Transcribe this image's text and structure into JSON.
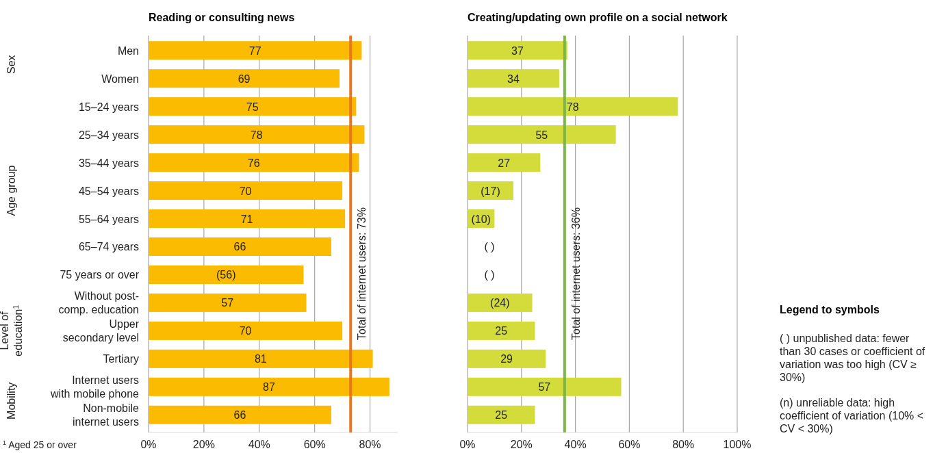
{
  "chart_data": [
    {
      "type": "bar",
      "orientation": "horizontal",
      "title": "Reading or consulting news",
      "categories": [
        "Men",
        "Women",
        "15–24 years",
        "25–34 years",
        "35–44 years",
        "45–54 years",
        "55–64 years",
        "65–74 years",
        "75 years or over",
        "Without post-\ncomp. education",
        "Upper\nsecondary level",
        "Tertiary",
        "Internet users\nwith mobile phone",
        "Non-mobile\ninternet users"
      ],
      "values": [
        77,
        69,
        75,
        78,
        76,
        70,
        71,
        66,
        56,
        57,
        70,
        81,
        87,
        66
      ],
      "value_labels": [
        "77",
        "69",
        "75",
        "78",
        "76",
        "70",
        "71",
        "66",
        "(56)",
        "57",
        "70",
        "81",
        "87",
        "66"
      ],
      "color": "#fbbb00",
      "xlim": [
        0,
        90
      ],
      "xticks": [
        {
          "value": 0,
          "label": "0%"
        },
        {
          "value": 20,
          "label": "20%"
        },
        {
          "value": 40,
          "label": "40%"
        },
        {
          "value": 60,
          "label": "60%"
        },
        {
          "value": 80,
          "label": "80%"
        }
      ],
      "grid": "x",
      "ref_lines": [
        {
          "axis": "x",
          "value": 73,
          "label": "Total of internet users: 73%",
          "color": "#e87722"
        }
      ],
      "annotations": [
        "Sex",
        "Age group",
        "Level of\neducation$^{1}$",
        "Mobility",
        "$^{1}$ Aged 25 or over"
      ]
    },
    {
      "type": "bar",
      "orientation": "horizontal",
      "title": "Creating/updating own profile on a social network",
      "categories": [
        null,
        null,
        null,
        null,
        null,
        null,
        null,
        null,
        null,
        null,
        null,
        null,
        null,
        null
      ],
      "values": [
        37,
        34,
        78,
        55,
        27,
        17,
        10,
        null,
        null,
        24,
        25,
        29,
        57,
        25
      ],
      "value_labels": [
        "37",
        "34",
        "78",
        "55",
        "27",
        "(17)",
        "(10)",
        "( )",
        "( )",
        "(24)",
        "25",
        "29",
        "57",
        "25"
      ],
      "color": "#d4dc3c",
      "xlim": [
        0,
        100
      ],
      "xticks": [
        {
          "value": 0,
          "label": "0%"
        },
        {
          "value": 20,
          "label": "20%"
        },
        {
          "value": 40,
          "label": "40%"
        },
        {
          "value": 60,
          "label": "60%"
        },
        {
          "value": 80,
          "label": "80%"
        },
        {
          "value": 100,
          "label": "100%"
        }
      ],
      "grid": "x",
      "tick_labels": "x",
      "ref_lines": [
        {
          "axis": "x",
          "value": 36,
          "label": "Total of internet users: 36%",
          "color": "#7ab648"
        }
      ]
    },
    {
      "type": "other",
      "title": "Legend to symbols",
      "annotations": [
        "( ) unpublished data: fewer than 30 cases or coefficient of variation was too high (CV ≥ 30%)",
        "(n) unreliable data: high coefficient of variation (10% < CV < 30%)"
      ]
    }
  ]
}
